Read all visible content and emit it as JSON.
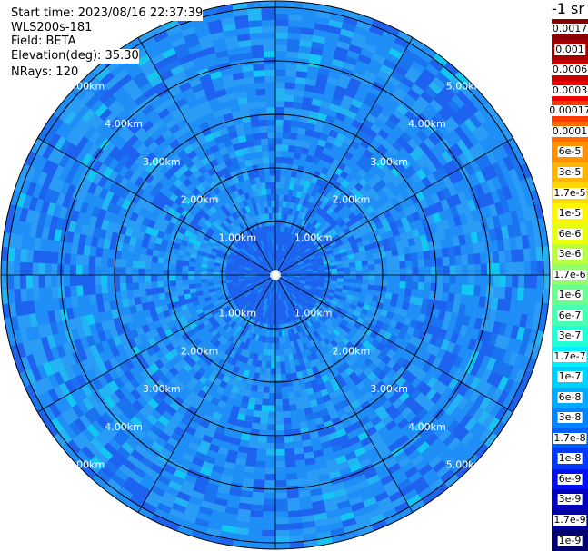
{
  "info": {
    "start_time": "Start time: 2023/08/16 22:37:39",
    "instrument": "WLS200s-181",
    "field": "Field: BETA",
    "elevation": "Elevation(deg): 35.30",
    "nrays": "NRays: 120"
  },
  "ring_labels": [
    "1.00km",
    "2.00km",
    "3.00km",
    "4.00km",
    "5.00km"
  ],
  "colorbar": {
    "unit": "-1 sr",
    "levels": [
      {
        "label": "0.0017",
        "color": "#8b0000"
      },
      {
        "label": "0.001",
        "color": "#a50000"
      },
      {
        "label": "0.0006",
        "color": "#c80000"
      },
      {
        "label": "0.0003",
        "color": "#f00000"
      },
      {
        "label": "0.00017",
        "color": "#ff3a00"
      },
      {
        "label": "0.0001",
        "color": "#ff6a00"
      },
      {
        "label": "6e-5",
        "color": "#ff9000"
      },
      {
        "label": "3e-5",
        "color": "#ffb400"
      },
      {
        "label": "1.7e-5",
        "color": "#ffd800"
      },
      {
        "label": "1e-5",
        "color": "#fff500"
      },
      {
        "label": "6e-6",
        "color": "#e8ff10"
      },
      {
        "label": "3e-6",
        "color": "#b8ff40"
      },
      {
        "label": "1.7e-6",
        "color": "#90ff6a"
      },
      {
        "label": "1e-6",
        "color": "#6cff90"
      },
      {
        "label": "6e-7",
        "color": "#48ffb4"
      },
      {
        "label": "3e-7",
        "color": "#22ffd8"
      },
      {
        "label": "1.7e-7",
        "color": "#00f0ff"
      },
      {
        "label": "1e-7",
        "color": "#00d0ff"
      },
      {
        "label": "6e-8",
        "color": "#00a8ff"
      },
      {
        "label": "3e-8",
        "color": "#0084ff"
      },
      {
        "label": "1.7e-8",
        "color": "#0060ff"
      },
      {
        "label": "1e-8",
        "color": "#0038ff"
      },
      {
        "label": "6e-9",
        "color": "#0010f0"
      },
      {
        "label": "3e-9",
        "color": "#0000c0"
      },
      {
        "label": "1.7e-9",
        "color": "#00009a"
      },
      {
        "label": "1e-9",
        "color": "#000070"
      }
    ]
  },
  "field_palette": [
    "#1e62f0",
    "#1f8ef7",
    "#2a9cf5",
    "#1a74ef",
    "#27a6f6",
    "#12c8f2",
    "#23b4f4"
  ]
}
